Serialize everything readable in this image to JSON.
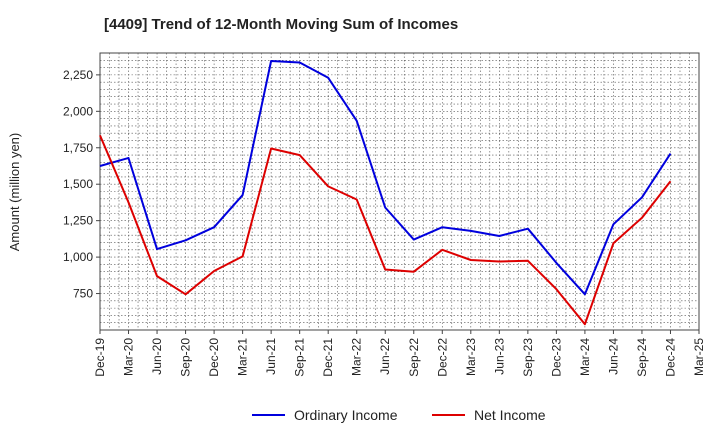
{
  "chart_data": {
    "type": "line",
    "title": "[4409]  Trend of 12-Month Moving Sum of Incomes",
    "xlabel": "",
    "ylabel": "Amount (million yen)",
    "categories": [
      "Dec-19",
      "Mar-20",
      "Jun-20",
      "Sep-20",
      "Dec-20",
      "Mar-21",
      "Jun-21",
      "Sep-21",
      "Dec-21",
      "Mar-22",
      "Jun-22",
      "Sep-22",
      "Dec-22",
      "Mar-23",
      "Jun-23",
      "Sep-23",
      "Dec-23",
      "Mar-24",
      "Jun-24",
      "Sep-24",
      "Dec-24",
      "Mar-25"
    ],
    "ylim": [
      500,
      2400
    ],
    "yticks": [
      750,
      1000,
      1250,
      1500,
      1750,
      2000,
      2250
    ],
    "ytick_labels": [
      "750",
      "1,000",
      "1,250",
      "1,500",
      "1,750",
      "2,000",
      "2,250"
    ],
    "grid": true,
    "legend_position": "bottom",
    "series": [
      {
        "name": "Ordinary Income",
        "color": "#0000dd",
        "values": [
          1625,
          1680,
          1055,
          1115,
          1205,
          1425,
          2345,
          2335,
          2230,
          1935,
          1340,
          1120,
          1205,
          1180,
          1145,
          1195,
          960,
          745,
          1225,
          1410,
          1710,
          null
        ]
      },
      {
        "name": "Net Income",
        "color": "#dd0000",
        "values": [
          1835,
          1375,
          870,
          745,
          905,
          1005,
          1745,
          1700,
          1485,
          1395,
          915,
          900,
          1050,
          980,
          970,
          975,
          780,
          540,
          1095,
          1270,
          1520,
          null
        ]
      }
    ]
  }
}
